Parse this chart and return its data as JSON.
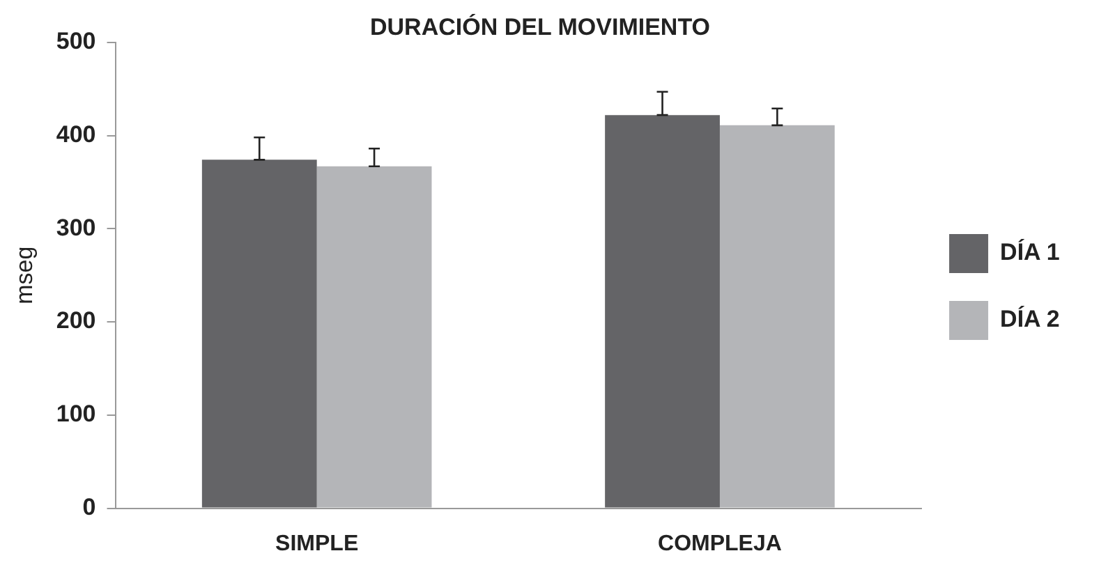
{
  "chart_data": {
    "type": "bar",
    "title": "DURACIÓN DEL MOVIMIENTO",
    "ylabel": "mseg",
    "categories": [
      "SIMPLE",
      "COMPLEJA"
    ],
    "series": [
      {
        "name": "DÍA 1",
        "color": "#646467",
        "values": [
          374,
          422
        ],
        "errors": [
          [
            374,
            398
          ],
          [
            422,
            447
          ]
        ]
      },
      {
        "name": "DÍA 2",
        "color": "#b4b5b8",
        "values": [
          367,
          411
        ],
        "errors": [
          [
            367,
            386
          ],
          [
            411,
            429
          ]
        ]
      }
    ],
    "ylim": [
      0,
      500
    ],
    "yticks": [
      0,
      100,
      200,
      300,
      400,
      500
    ],
    "grid": false,
    "legend": "right"
  }
}
